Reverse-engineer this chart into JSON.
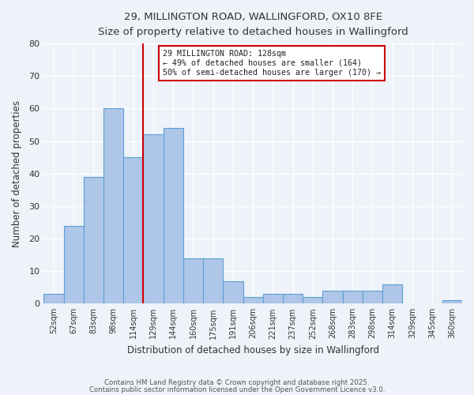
{
  "title_line1": "29, MILLINGTON ROAD, WALLINGFORD, OX10 8FE",
  "title_line2": "Size of property relative to detached houses in Wallingford",
  "xlabel": "Distribution of detached houses by size in Wallingford",
  "ylabel": "Number of detached properties",
  "bin_labels": [
    "52sqm",
    "67sqm",
    "83sqm",
    "98sqm",
    "114sqm",
    "129sqm",
    "144sqm",
    "160sqm",
    "175sqm",
    "191sqm",
    "206sqm",
    "221sqm",
    "237sqm",
    "252sqm",
    "268sqm",
    "283sqm",
    "298sqm",
    "314sqm",
    "329sqm",
    "345sqm",
    "360sqm"
  ],
  "bar_values": [
    3,
    24,
    39,
    60,
    45,
    52,
    54,
    14,
    14,
    7,
    2,
    3,
    3,
    2,
    4,
    4,
    4,
    6,
    0,
    0,
    1
  ],
  "bar_color": "#aec6e8",
  "bar_edge_color": "#5a9fd4",
  "vline_x_index": 5,
  "vline_color": "#cc0000",
  "annotation_line1": "29 MILLINGTON ROAD: 128sqm",
  "annotation_line2": "← 49% of detached houses are smaller (164)",
  "annotation_line3": "50% of semi-detached houses are larger (170) →",
  "annotation_box_edgecolor": "#cc0000",
  "ylim": [
    0,
    80
  ],
  "yticks": [
    0,
    10,
    20,
    30,
    40,
    50,
    60,
    70,
    80
  ],
  "footer_line1": "Contains HM Land Registry data © Crown copyright and database right 2025.",
  "footer_line2": "Contains public sector information licensed under the Open Government Licence v3.0.",
  "background_color": "#eef2f9",
  "grid_color": "#ffffff"
}
